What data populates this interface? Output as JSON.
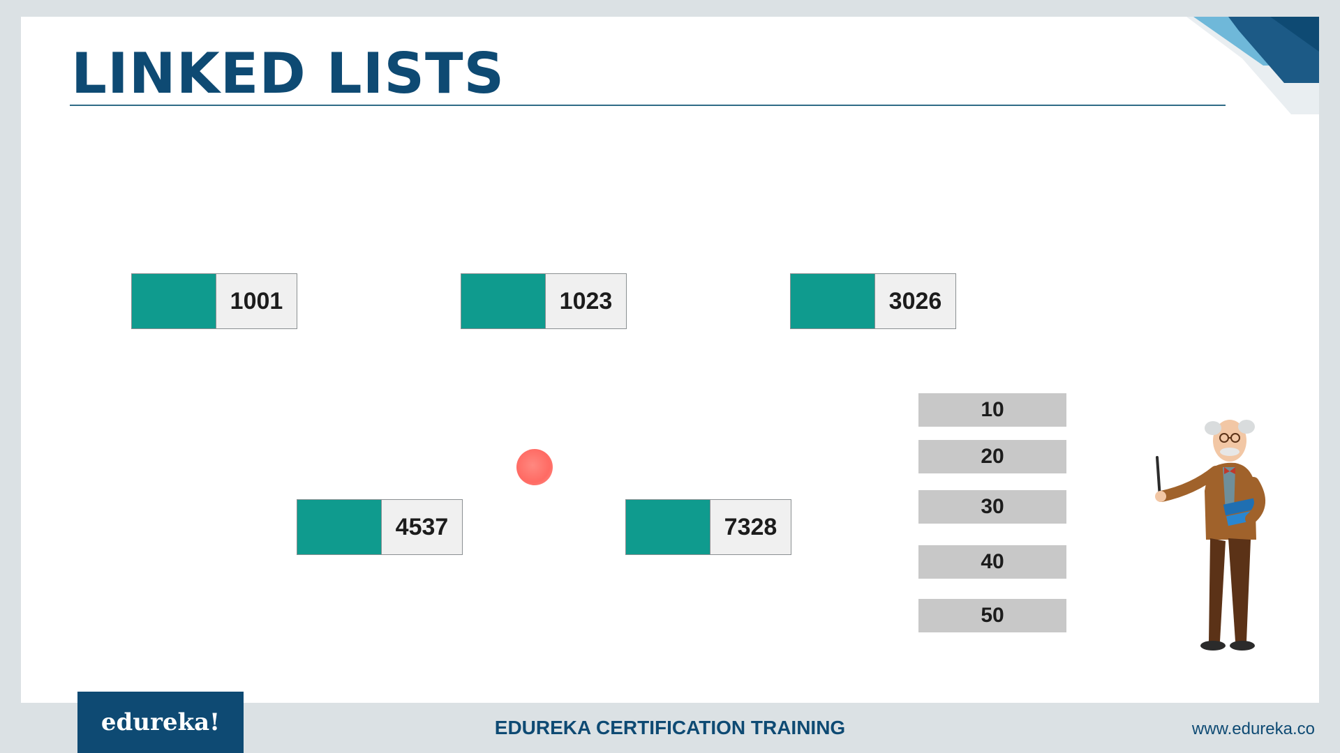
{
  "slide": {
    "title": "LINKED LISTS"
  },
  "nodes": [
    {
      "address": "1001"
    },
    {
      "address": "1023"
    },
    {
      "address": "3026"
    },
    {
      "address": "4537"
    },
    {
      "address": "7328"
    }
  ],
  "values": [
    "10",
    "20",
    "30",
    "40",
    "50"
  ],
  "footer": {
    "logo": "edureka!",
    "center": "EDUREKA CERTIFICATION TRAINING",
    "url": "www.edureka.co"
  },
  "colors": {
    "title": "#0e4a73",
    "node_data": "#0f9b8e",
    "value_box": "#c8c8c8",
    "pointer_dot": "#ff5a52",
    "footer_brand": "#0e4a73"
  },
  "icons": [
    "professor-character-icon",
    "corner-decoration-icon",
    "pointer-dot-icon"
  ]
}
